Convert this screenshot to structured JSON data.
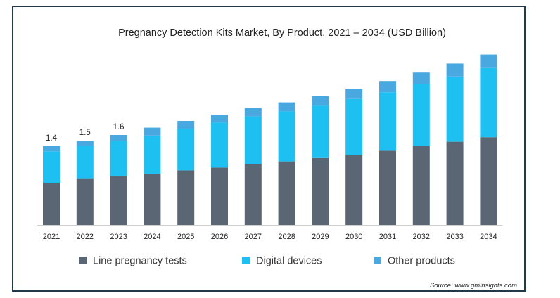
{
  "chart_data": {
    "type": "bar",
    "stacked": true,
    "title": "Pregnancy Detection Kits Market, By Product, 2021 – 2034 (USD Billion)",
    "xlabel": "",
    "ylabel": "",
    "ylim": [
      0,
      3.0
    ],
    "grid": false,
    "legend_position": "bottom",
    "categories": [
      "2021",
      "2022",
      "2023",
      "2024",
      "2025",
      "2026",
      "2027",
      "2028",
      "2029",
      "2030",
      "2031",
      "2032",
      "2033",
      "2034"
    ],
    "series": [
      {
        "name": "Line pregnancy tests",
        "color": "#5a6673",
        "values": [
          0.75,
          0.83,
          0.87,
          0.91,
          0.97,
          1.02,
          1.08,
          1.13,
          1.19,
          1.25,
          1.32,
          1.4,
          1.48,
          1.56
        ]
      },
      {
        "name": "Digital devices",
        "color": "#1ec0f2",
        "values": [
          0.56,
          0.57,
          0.62,
          0.68,
          0.74,
          0.8,
          0.85,
          0.89,
          0.93,
          0.99,
          1.04,
          1.1,
          1.16,
          1.23
        ]
      },
      {
        "name": "Other products",
        "color": "#4aa8e0",
        "values": [
          0.09,
          0.1,
          0.11,
          0.14,
          0.14,
          0.14,
          0.15,
          0.16,
          0.17,
          0.18,
          0.2,
          0.21,
          0.23,
          0.24
        ]
      }
    ],
    "data_labels": [
      "1.4",
      "1.5",
      "1.6"
    ],
    "source": "Source: www.gminsights.com"
  }
}
